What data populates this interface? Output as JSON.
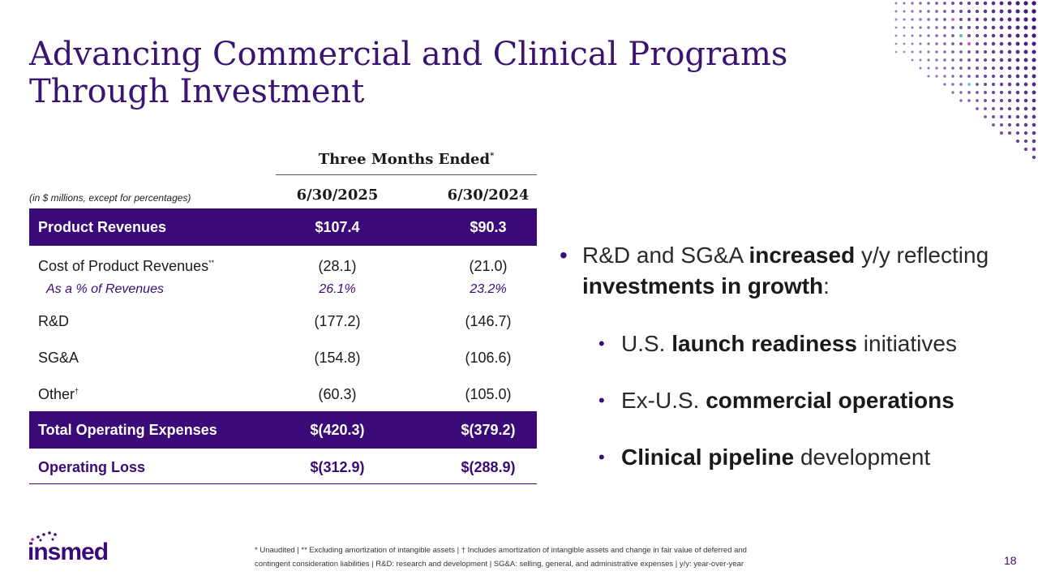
{
  "title": {
    "line1": "Advancing Commercial and Clinical Programs",
    "line2": "Through Investment"
  },
  "table": {
    "group_header": "Three Months Ended",
    "group_header_mark": "*",
    "units_note": "(in $ millions, except for percentages)",
    "col1": "6/30/2025",
    "col2": "6/30/2024",
    "product_revenues": {
      "label": "Product Revenues",
      "v1": "$107.4",
      "v2": "$90.3"
    },
    "cost_of_product": {
      "label": "Cost of Product Revenues",
      "mark": "**",
      "v1": "(28.1)",
      "v2": "(21.0)"
    },
    "pct_of_revenues": {
      "label": "As a % of Revenues",
      "v1": "26.1%",
      "v2": "23.2%"
    },
    "rnd": {
      "label": "R&D",
      "v1": "(177.2)",
      "v2": "(146.7)"
    },
    "sga": {
      "label": "SG&A",
      "v1": "(154.8)",
      "v2": "(106.6)"
    },
    "other": {
      "label": "Other",
      "mark": "†",
      "v1": "(60.3)",
      "v2": "(105.0)"
    },
    "total_opex": {
      "label": "Total Operating Expenses",
      "v1": "$(420.3)",
      "v2": "$(379.2)"
    },
    "operating_loss": {
      "label": "Operating Loss",
      "v1": "$(312.9)",
      "v2": "$(288.9)"
    }
  },
  "bullets": {
    "main": {
      "p1": "R&D and SG&A ",
      "b1": "increased",
      "p2": " y/y reflecting ",
      "b2": "investments in growth",
      "p3": ":"
    },
    "sub1": {
      "p1": "U.S. ",
      "b1": "launch readiness",
      "p2": " initiatives"
    },
    "sub2": {
      "p1": "Ex-U.S. ",
      "b1": "commercial operations"
    },
    "sub3": {
      "b1": "Clinical",
      "b2": "pipeline",
      "p1": " development"
    }
  },
  "footnote": {
    "line1": "* Unaudited | ** Excluding amortization of intangible assets | † Includes amortization of intangible assets and change in fair value of deferred and",
    "line2": "contingent consideration liabilities | R&D: research and development | SG&A: selling, general, and administrative expenses | y/y: year-over-year"
  },
  "logo_text": "insmed",
  "page_number": "18",
  "colors": {
    "brand_purple": "#3a0b78",
    "title_purple": "#3a1470",
    "accent_magenta": "#c21c8a",
    "accent_teal": "#1aa39a"
  }
}
